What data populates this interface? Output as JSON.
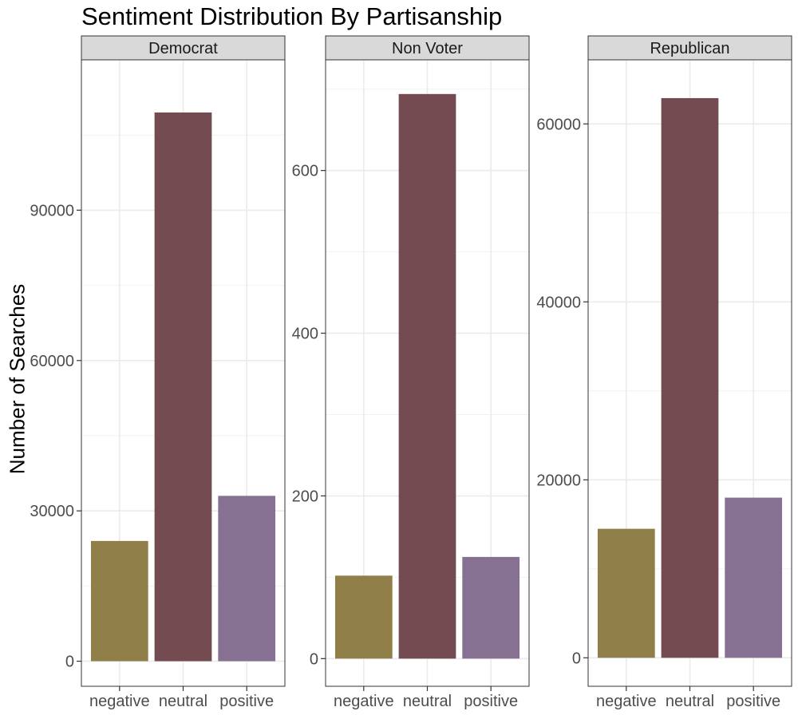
{
  "chart_data": {
    "type": "bar",
    "title": "Sentiment Distribution By Partisanship",
    "ylabel": "Number of Searches",
    "xlabel": "",
    "categories": [
      "negative",
      "neutral",
      "positive"
    ],
    "colors": [
      "#917F4A",
      "#734B50",
      "#877193"
    ],
    "grid": true,
    "legend": "none",
    "facets": [
      {
        "name": "Democrat",
        "values": [
          24000,
          109500,
          33000
        ],
        "ylim": [
          -5000,
          120000
        ],
        "yticks": [
          0,
          30000,
          60000,
          90000
        ]
      },
      {
        "name": "Non Voter",
        "values": [
          102,
          694,
          125
        ],
        "ylim": [
          -34,
          736
        ],
        "yticks": [
          0,
          200,
          400,
          600
        ]
      },
      {
        "name": "Republican",
        "values": [
          14500,
          62900,
          18000
        ],
        "ylim": [
          -3200,
          67200
        ],
        "yticks": [
          0,
          20000,
          40000,
          60000
        ]
      }
    ]
  }
}
